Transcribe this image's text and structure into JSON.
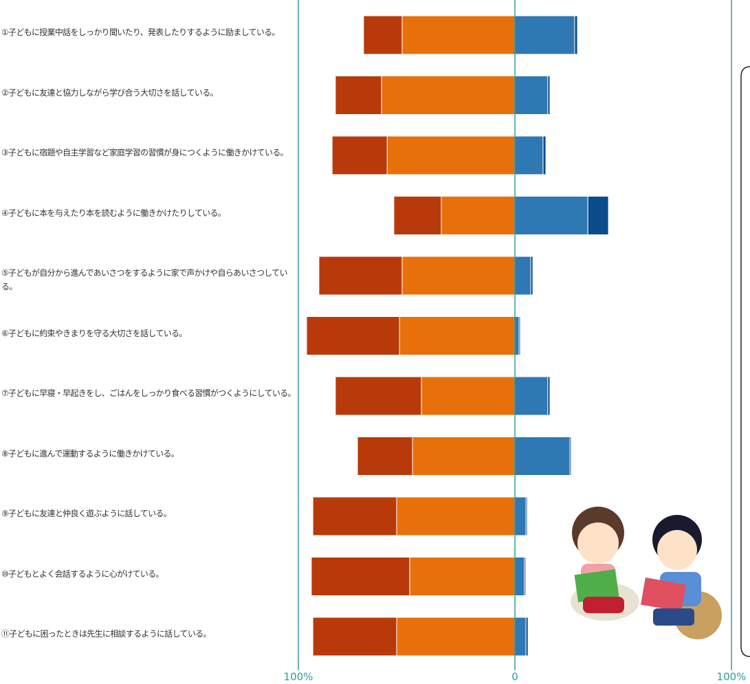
{
  "chart_data": {
    "type": "diverging-bar",
    "categories": [
      "①子どもに授業中話をしっかり聞いたり、発表したりするように励ましている。",
      "②子どもに友達と協力しながら学び合う大切さを話している。",
      "③子どもに宿題や自主学習など家庭学習の習慣が身につくように働きかけている。",
      "④子どもに本を与えたり本を読むように働きかけたりしている。",
      "⑤子どもが自分から進んであいさつをするように家で声かけや自らあいさつしている。",
      "⑥子どもに約束やきまりを守る大切さを話している。",
      "⑦子どもに早寝・早起きをし、ごはんをしっかり食べる習慣がつくようにしている。",
      "⑧子どもに進んで運動するように働きかけている。",
      "⑨子どもに友達と仲良く遊ぶように話している。",
      "⑩子どもとよく会話するように心がけている。",
      "⑪子どもに困ったときは先生に相談するように話している。"
    ],
    "series": [
      {
        "color": "#e8700a",
        "values": [
          -52.1,
          -61.6,
          -59.0,
          -34.0,
          -52.1,
          -53.3,
          -43.2,
          -47.3,
          -54.6,
          -48.6,
          -54.6
        ]
      },
      {
        "color": "#b83a0a",
        "values": [
          -17.8,
          -21.3,
          -25.4,
          -21.9,
          -38.4,
          -42.9,
          -39.7,
          -25.4,
          -38.7,
          -45.4,
          -38.7
        ]
      },
      {
        "color": "#2e78b4",
        "values": [
          27.6,
          15.2,
          13.0,
          33.7,
          7.3,
          1.9,
          15.2,
          25.4,
          5.1,
          4.4,
          5.1
        ]
      },
      {
        "color": "#0b4c8a",
        "values": [
          1.3,
          1.0,
          1.3,
          9.5,
          1.0,
          0.6,
          1.0,
          0.6,
          0.6,
          0.6,
          1.0
        ]
      }
    ],
    "xlim": [
      -100,
      100
    ],
    "xticks": [
      {
        "value": -100,
        "label": "100%"
      },
      0,
      {
        "value": 100,
        "label": "100%"
      }
    ]
  }
}
